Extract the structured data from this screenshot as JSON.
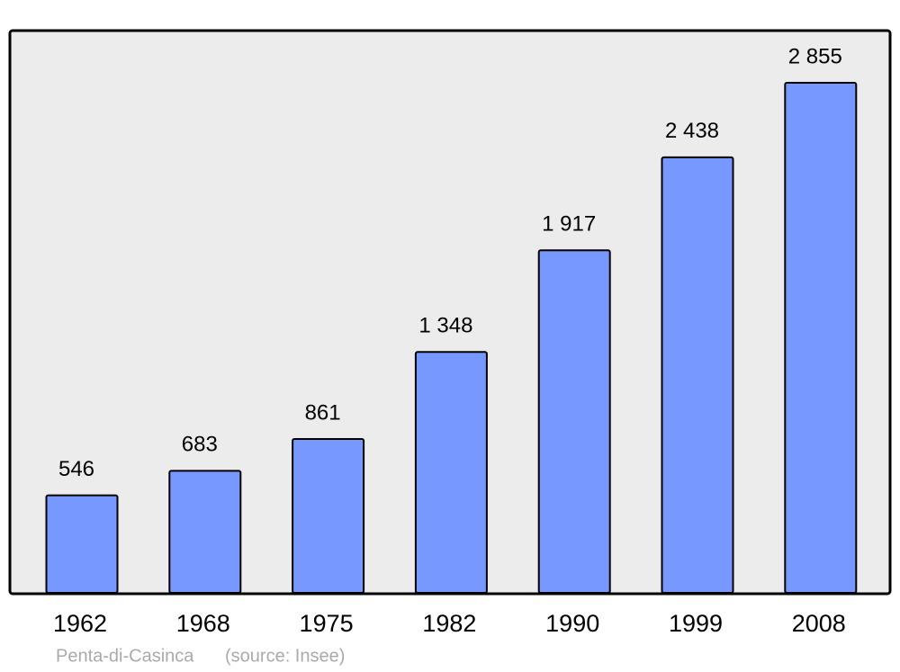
{
  "chart_data": {
    "type": "bar",
    "categories": [
      "1962",
      "1968",
      "1975",
      "1982",
      "1990",
      "1999",
      "2008"
    ],
    "values": [
      546,
      683,
      861,
      1348,
      1917,
      2438,
      2855
    ],
    "value_labels": [
      "546",
      "683",
      "861",
      "1 348",
      "1 917",
      "2 438",
      "2 855"
    ],
    "color": "#7799ff",
    "ylim": [
      0,
      3142
    ],
    "caption": "Penta-di-Casinca",
    "source": "(source: Insee)"
  }
}
